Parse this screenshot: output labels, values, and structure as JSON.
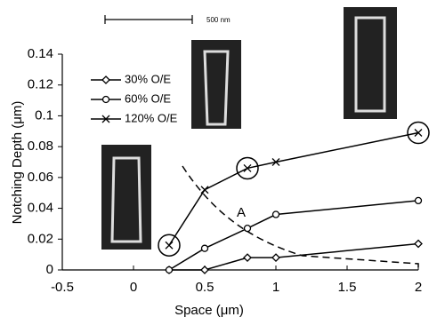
{
  "chart_data": {
    "type": "line",
    "x_label": "Space (μm)",
    "y_label": "Notching Depth (μm)",
    "x": [
      0.25,
      0.5,
      0.8,
      1,
      2
    ],
    "series": [
      {
        "name": "30% O/E",
        "color": "#000000",
        "marker": "diamond",
        "values": [
          0,
          0,
          0.008,
          0.008,
          0.017
        ]
      },
      {
        "name": "60% O/E",
        "color": "#000000",
        "marker": "circle",
        "values": [
          0,
          0.014,
          0.027,
          0.036,
          0.045
        ]
      },
      {
        "name": "120% O/E",
        "color": "#000000",
        "marker": "x",
        "values": [
          0.016,
          0.052,
          0.066,
          0.07,
          0.089
        ]
      }
    ],
    "xlim": [
      -0.5,
      2
    ],
    "xticks": [
      -0.5,
      0,
      0.5,
      1,
      1.5,
      2
    ],
    "ylim": [
      0,
      0.14
    ],
    "yticks": [
      0,
      0.02,
      0.04,
      0.06,
      0.08,
      0.1,
      0.12,
      0.14
    ],
    "annotation": "A",
    "scale_bar_label": "500 nm"
  }
}
